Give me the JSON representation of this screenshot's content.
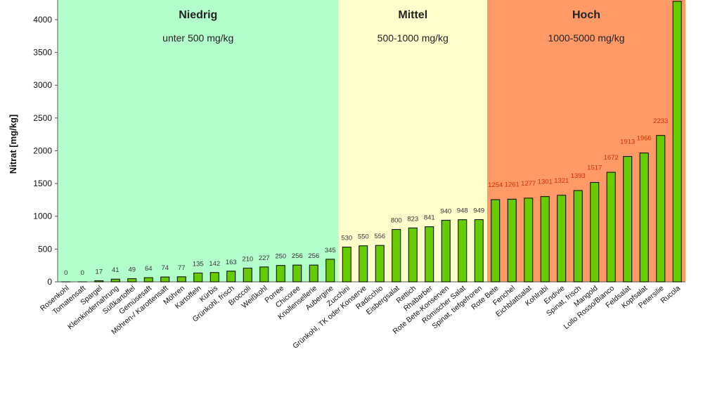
{
  "chart_data": {
    "type": "bar",
    "ylabel": "Nitrat [mg/kg]",
    "ylim": [
      0,
      4300
    ],
    "yticks": [
      "0",
      "500",
      "1000",
      "1500",
      "2000",
      "2500",
      "3000",
      "3500",
      "4000"
    ],
    "ytick_values": [
      0,
      500,
      1000,
      1500,
      2000,
      2500,
      3000,
      3500,
      4000
    ],
    "grid": false,
    "bar_color": "#66cc00",
    "bar_outline": "#000000",
    "categories": [
      "Rosenkohl",
      "Tomatensaft",
      "Spargel",
      "Kleinkindernahrung",
      "Süßkartoffel",
      "Gemüsesaft",
      "Möhren-/ Karottensaft",
      "Möhren",
      "Kartoffeln",
      "Kürbis",
      "Grünkohl, frisch",
      "Broccoli",
      "Weißkohl",
      "Porree",
      "Chicoree",
      "Knollensellerie",
      "Aubergine",
      "Zucchini",
      "Grünkohl, TK oder Konserve",
      "Radicchio",
      "Eisbergsalat",
      "Rettich",
      "Rhabarber",
      "Rote Bete-Konserven",
      "Römischer Salat",
      "Spinat, tiefgefroren",
      "Rote Bete",
      "Fenchel",
      "Eichblattsalat",
      "Kohlrabi",
      "Endivie",
      "Spinat, frisch",
      "Mangold",
      "Lollo Rosso/Bianco",
      "Feldsalat",
      "Kopfsalat",
      "Petersilie",
      "Rucola"
    ],
    "values": [
      0,
      0,
      17,
      41,
      49,
      64,
      74,
      77,
      135,
      142,
      163,
      210,
      227,
      250,
      256,
      256,
      345,
      530,
      550,
      556,
      800,
      823,
      841,
      940,
      948,
      949,
      1254,
      1261,
      1277,
      1301,
      1321,
      1393,
      1517,
      1672,
      1913,
      1966,
      2233,
      4280
    ],
    "value_labels": [
      "0",
      "0",
      "17",
      "41",
      "49",
      "64",
      "74",
      "77",
      "135",
      "142",
      "163",
      "210",
      "227",
      "250",
      "256",
      "256",
      "345",
      "530",
      "550",
      "556",
      "800",
      "823",
      "841",
      "940",
      "948",
      "949",
      "1254",
      "1261",
      "1277",
      "1301",
      "1321",
      "1393",
      "1517",
      "1672",
      "1913",
      "1966",
      "2233",
      ""
    ],
    "bands": [
      {
        "title": "Niedrig",
        "subtitle": "unter 500 mg/kg",
        "color": "#b3ffcc",
        "label_color": "#333333",
        "from_index": 0,
        "to_index": 16
      },
      {
        "title": "Mittel",
        "subtitle": "500-1000 mg/kg",
        "color": "#ffffcc",
        "label_color": "#333333",
        "from_index": 17,
        "to_index": 25
      },
      {
        "title": "Hoch",
        "subtitle": "1000-5000 mg/kg",
        "color": "#ff9966",
        "label_color": "#cc3300",
        "from_index": 26,
        "to_index": 37
      }
    ]
  }
}
